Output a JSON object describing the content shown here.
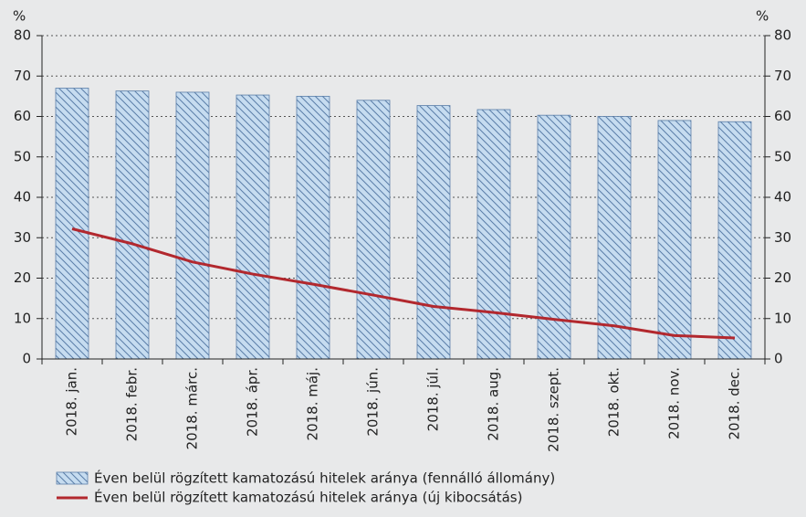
{
  "chart_data": {
    "type": "bar_line",
    "y_unit": "%",
    "y2_unit": "%",
    "categories": [
      "2018. jan.",
      "2018. febr.",
      "2018. márc.",
      "2018. ápr.",
      "2018. máj.",
      "2018. jún.",
      "2018. júl.",
      "2018. aug.",
      "2018. szept.",
      "2018. okt.",
      "2018. nov.",
      "2018. dec."
    ],
    "series": [
      {
        "name": "Éven belül rögzített kamatozású hitelek aránya (fennálló állomány)",
        "type": "bar",
        "color": "#c6dcf0",
        "hatch_color": "#5a7ea8",
        "values": [
          67,
          66.3,
          66,
          65.3,
          65,
          64,
          62.7,
          61.7,
          60.3,
          60,
          59,
          58.7
        ]
      },
      {
        "name": "Éven belül rögzített kamatozású hitelek aránya (új kibocsátás)",
        "type": "line",
        "color": "#b2282e",
        "values": [
          32.2,
          28.5,
          24,
          21,
          18.5,
          15.8,
          13,
          11.5,
          9.8,
          8.2,
          5.8,
          5.2
        ]
      }
    ],
    "ylim": [
      0,
      80
    ],
    "yticks": [
      0,
      10,
      20,
      30,
      40,
      50,
      60,
      70,
      80
    ],
    "y2lim": [
      0,
      80
    ],
    "y2ticks": [
      0,
      10,
      20,
      30,
      40,
      50,
      60,
      70,
      80
    ],
    "grid": true
  }
}
